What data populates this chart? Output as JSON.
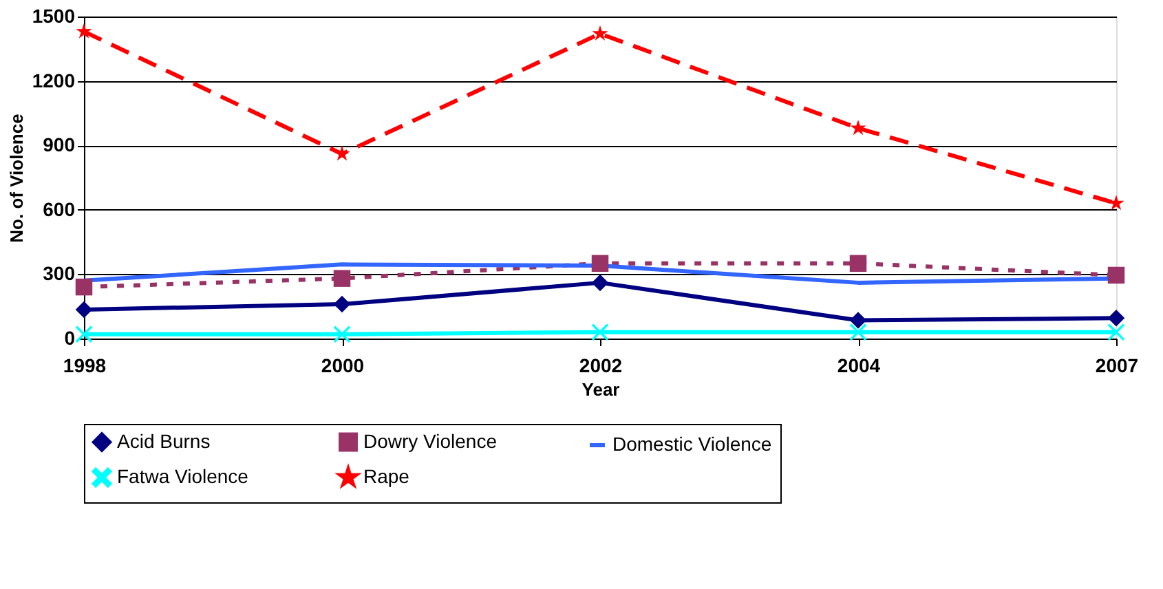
{
  "chart_data": {
    "type": "line",
    "xlabel": "Year",
    "ylabel": "No. of Violence",
    "categories": [
      "1998",
      "2000",
      "2002",
      "2004",
      "2007"
    ],
    "series": [
      {
        "name": "Acid Burns",
        "color": "#000080",
        "marker": "diamond",
        "line_style": "solid",
        "values": [
          135,
          160,
          260,
          85,
          95
        ]
      },
      {
        "name": "Dowry Violence",
        "color": "#993366",
        "marker": "square",
        "line_style": "dotted",
        "values": [
          240,
          280,
          350,
          350,
          295
        ]
      },
      {
        "name": "Domestic Violence",
        "color": "#3366ff",
        "marker": "none",
        "line_style": "solid",
        "values": [
          270,
          345,
          340,
          260,
          280
        ]
      },
      {
        "name": "Fatwa Violence",
        "color": "#00ffff",
        "marker": "cross",
        "line_style": "solid",
        "values": [
          20,
          20,
          30,
          30,
          30
        ]
      },
      {
        "name": "Rape",
        "color": "#ff0000",
        "marker": "star",
        "line_style": "dashed",
        "values": [
          1430,
          860,
          1420,
          980,
          630
        ]
      }
    ],
    "ylim": [
      0,
      1500
    ],
    "yticks": [
      0,
      300,
      600,
      900,
      1200,
      1500
    ],
    "grid": "y",
    "legend": "bottom"
  }
}
